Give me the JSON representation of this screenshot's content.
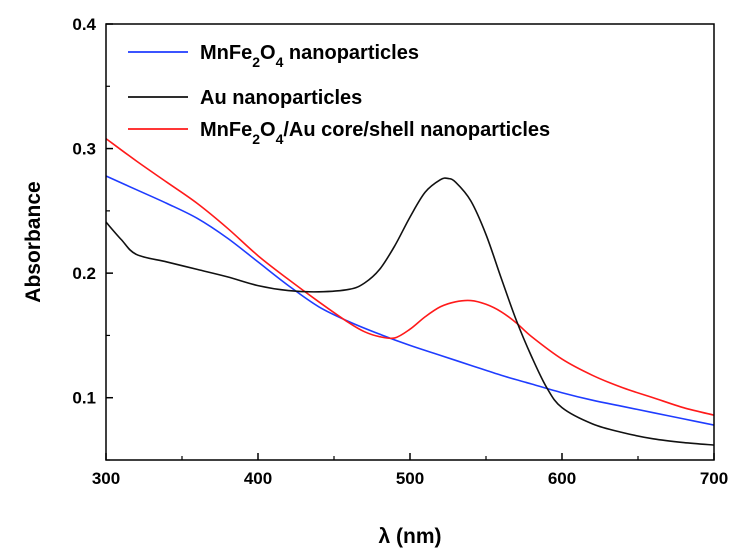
{
  "chart_data": {
    "type": "line",
    "xlabel": "λ (nm)",
    "ylabel": "Absorbance",
    "xlim": [
      300,
      700
    ],
    "ylim": [
      0.05,
      0.4
    ],
    "x_ticks": [
      "300",
      "400",
      "500",
      "600",
      "700"
    ],
    "y_ticks": [
      "0.1",
      "0.2",
      "0.3",
      "0.4"
    ],
    "legend_position": "top-left",
    "grid": false,
    "series": [
      {
        "name": "MnFe2O4 nanoparticles",
        "name_html": "MnFe<tspan baseline-shift=\"sub\" font-size=\"14\">2</tspan>O<tspan baseline-shift=\"sub\" font-size=\"14\">4</tspan> nanoparticles",
        "color": "#1f3cff",
        "x": [
          300,
          320,
          340,
          360,
          380,
          400,
          420,
          440,
          460,
          480,
          500,
          520,
          540,
          560,
          580,
          600,
          620,
          640,
          660,
          680,
          700
        ],
        "y": [
          0.278,
          0.267,
          0.256,
          0.244,
          0.228,
          0.209,
          0.19,
          0.173,
          0.161,
          0.151,
          0.142,
          0.134,
          0.126,
          0.118,
          0.111,
          0.104,
          0.098,
          0.093,
          0.088,
          0.083,
          0.078
        ]
      },
      {
        "name": "Au nanoparticles",
        "name_html": "Au nanoparticles",
        "color": "#111111",
        "x": [
          300,
          310,
          320,
          340,
          360,
          380,
          400,
          420,
          440,
          460,
          470,
          480,
          490,
          500,
          510,
          520,
          525,
          530,
          540,
          550,
          560,
          570,
          580,
          590,
          600,
          620,
          640,
          660,
          680,
          700
        ],
        "y": [
          0.241,
          0.227,
          0.215,
          0.209,
          0.203,
          0.197,
          0.19,
          0.186,
          0.185,
          0.187,
          0.192,
          0.203,
          0.222,
          0.245,
          0.265,
          0.275,
          0.276,
          0.273,
          0.258,
          0.231,
          0.196,
          0.162,
          0.133,
          0.108,
          0.092,
          0.079,
          0.072,
          0.067,
          0.064,
          0.062
        ]
      },
      {
        "name": "MnFe2O4/Au core/shell nanoparticles",
        "name_html": "MnFe<tspan baseline-shift=\"sub\" font-size=\"14\">2</tspan>O<tspan baseline-shift=\"sub\" font-size=\"14\">4</tspan>/Au core/shell nanoparticles",
        "color": "#ff1a1a",
        "x": [
          300,
          320,
          340,
          360,
          380,
          400,
          420,
          440,
          460,
          470,
          480,
          490,
          500,
          510,
          520,
          530,
          540,
          550,
          560,
          570,
          580,
          600,
          620,
          640,
          660,
          680,
          700
        ],
        "y": [
          0.308,
          0.29,
          0.273,
          0.256,
          0.236,
          0.214,
          0.195,
          0.177,
          0.16,
          0.153,
          0.149,
          0.148,
          0.155,
          0.165,
          0.173,
          0.177,
          0.178,
          0.175,
          0.169,
          0.16,
          0.149,
          0.131,
          0.118,
          0.108,
          0.1,
          0.092,
          0.086
        ]
      }
    ]
  }
}
